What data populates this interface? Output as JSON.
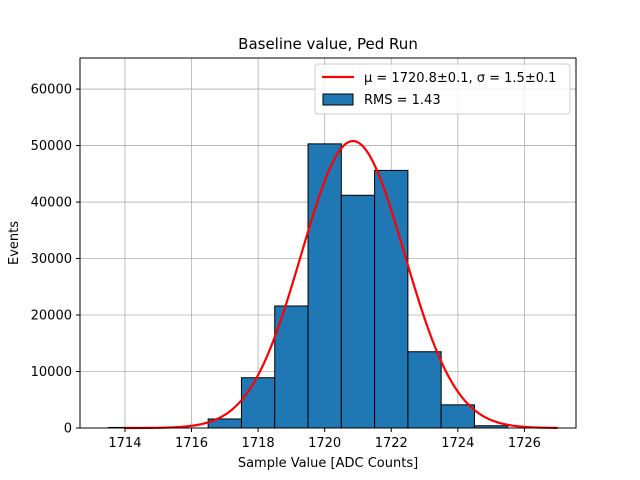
{
  "chart_data": {
    "type": "bar",
    "title": "Baseline value, Ped Run",
    "xlabel": "Sample Value [ADC Counts]",
    "ylabel": "Events",
    "xlim": [
      1712.65,
      1727.55
    ],
    "ylim": [
      0,
      65500
    ],
    "grid": true,
    "legend_position": "top-right",
    "x_ticks": [
      1714,
      1716,
      1718,
      1720,
      1722,
      1724,
      1726
    ],
    "y_ticks": [
      0,
      10000,
      20000,
      30000,
      40000,
      50000,
      60000
    ],
    "histogram": {
      "name": "RMS = 1.43",
      "color": "#1f77b4",
      "bins": [
        {
          "x0": 1713.5,
          "x1": 1714.5,
          "value": 100
        },
        {
          "x0": 1716.5,
          "x1": 1717.5,
          "value": 1600
        },
        {
          "x0": 1717.5,
          "x1": 1718.5,
          "value": 8900
        },
        {
          "x0": 1718.5,
          "x1": 1719.5,
          "value": 21600
        },
        {
          "x0": 1719.5,
          "x1": 1720.5,
          "value": 50300
        },
        {
          "x0": 1720.5,
          "x1": 1721.5,
          "value": 41200
        },
        {
          "x0": 1721.5,
          "x1": 1722.5,
          "value": 45600
        },
        {
          "x0": 1722.5,
          "x1": 1723.5,
          "value": 13500
        },
        {
          "x0": 1723.5,
          "x1": 1724.5,
          "value": 4100
        },
        {
          "x0": 1724.5,
          "x1": 1725.5,
          "value": 400
        }
      ]
    },
    "fit": {
      "name": "μ = 1720.8±0.1, σ = 1.5±0.1",
      "color": "#ff0000",
      "mu": 1720.85,
      "sigma": 1.55,
      "amplitude": 50800,
      "x_range": [
        1714,
        1727
      ]
    }
  }
}
